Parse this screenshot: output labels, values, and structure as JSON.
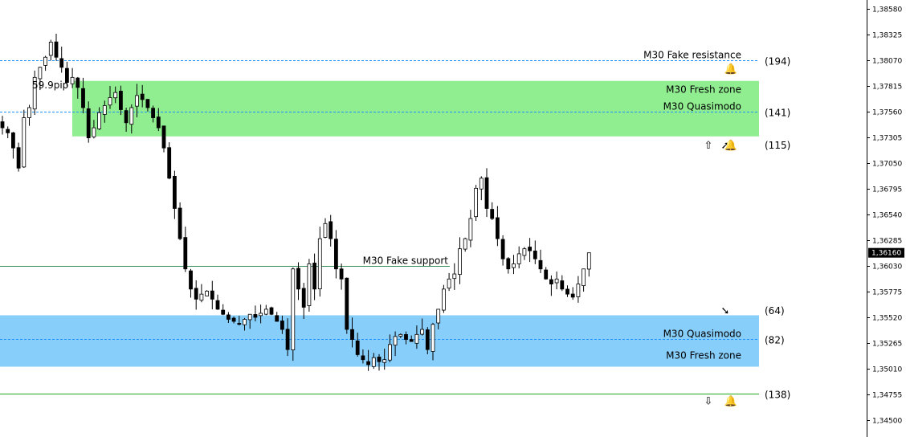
{
  "chart_data": {
    "type": "candlestick",
    "y_axis": {
      "ticks": [
        "1,38580",
        "1,38325",
        "1,38070",
        "1,37815",
        "1,37560",
        "1,37305",
        "1,37050",
        "1,36795",
        "1,36540",
        "1,36285",
        "1,36030",
        "1,35775",
        "1,35520",
        "1,35265",
        "1,35010",
        "1,34755",
        "1,34500"
      ],
      "ylim": [
        1.345,
        1.3858
      ],
      "current_price": "1,36160"
    },
    "zones": [
      {
        "name": "supply",
        "top": 1.37865,
        "bottom": 1.37315,
        "color": "#90ee90"
      },
      {
        "name": "demand",
        "top": 1.3554,
        "bottom": 1.3503,
        "color": "#87cefa"
      }
    ],
    "levels": [
      {
        "price": 1.3807,
        "style": "dashed",
        "color": "#1e90ff",
        "label": "M30 Fake resistance",
        "count": "(194)"
      },
      {
        "price": 1.3756,
        "style": "dashed",
        "color": "#1e90ff",
        "label": "M30 Quasimodo",
        "count": "(141)"
      },
      {
        "price": 1.3603,
        "style": "solid",
        "color": "#2e8b57",
        "label": "M30 Fake support",
        "count": ""
      },
      {
        "price": 1.35305,
        "style": "dashed",
        "color": "#1e90ff",
        "label": "M30 Quasimodo",
        "count": "(82)"
      },
      {
        "price": 1.3476,
        "style": "solid",
        "color": "#22aa22",
        "label": "",
        "count": "(138)"
      }
    ],
    "zone_labels": [
      {
        "text": "M30 Fresh zone",
        "price": 1.3778
      },
      {
        "text": "M30 Fresh zone",
        "price": 1.3514
      }
    ],
    "counts_extra": [
      {
        "price": 1.37235,
        "count": "(115)"
      },
      {
        "price": 1.3559,
        "count": "(64)"
      }
    ],
    "pip_annotation": "59.9pip",
    "icons": [
      {
        "name": "bell-icon",
        "glyph": "🔔",
        "price": 1.3799,
        "slot": 0
      },
      {
        "name": "up-arrow-outline-icon",
        "glyph": "⇧",
        "price": 1.37235,
        "slot": 2
      },
      {
        "name": "up-right-arrow-icon",
        "glyph": "➚",
        "price": 1.37235,
        "slot": 1
      },
      {
        "name": "bell-icon",
        "glyph": "🔔",
        "price": 1.37235,
        "slot": 0
      },
      {
        "name": "down-right-arrow-icon",
        "glyph": "➘",
        "price": 1.3559,
        "slot": 1
      },
      {
        "name": "down-arrow-outline-icon",
        "glyph": "⇩",
        "price": 1.34695,
        "slot": 2
      },
      {
        "name": "bell-icon",
        "glyph": "🔔",
        "price": 1.34695,
        "slot": 0
      }
    ],
    "closes": [
      1.374,
      1.3735,
      1.372,
      1.37,
      1.375,
      1.376,
      1.379,
      1.38,
      1.381,
      1.3825,
      1.381,
      1.38,
      1.3785,
      1.379,
      1.378,
      1.376,
      1.373,
      1.374,
      1.3755,
      1.3762,
      1.377,
      1.3775,
      1.3758,
      1.3745,
      1.376,
      1.3772,
      1.3768,
      1.376,
      1.375,
      1.374,
      1.372,
      1.369,
      1.366,
      1.363,
      1.36,
      1.358,
      1.357,
      1.3575,
      1.3578,
      1.357,
      1.356,
      1.3555,
      1.355,
      1.3548,
      1.3545,
      1.355,
      1.3555,
      1.3552,
      1.3556,
      1.356,
      1.3555,
      1.3548,
      1.354,
      1.352,
      1.36,
      1.358,
      1.3562,
      1.3605,
      1.358,
      1.363,
      1.3645,
      1.363,
      1.36,
      1.359,
      1.354,
      1.353,
      1.3515,
      1.351,
      1.3505,
      1.3512,
      1.3508,
      1.351,
      1.3525,
      1.3533,
      1.3535,
      1.353,
      1.3528,
      1.3535,
      1.354,
      1.352,
      1.3545,
      1.356,
      1.358,
      1.359,
      1.3595,
      1.362,
      1.363,
      1.365,
      1.368,
      1.369,
      1.366,
      1.365,
      1.363,
      1.361,
      1.36,
      1.3605,
      1.3615,
      1.362,
      1.3618,
      1.361,
      1.36,
      1.359,
      1.3585,
      1.359,
      1.358,
      1.3575,
      1.3572,
      1.3585,
      1.36,
      1.3616
    ]
  }
}
